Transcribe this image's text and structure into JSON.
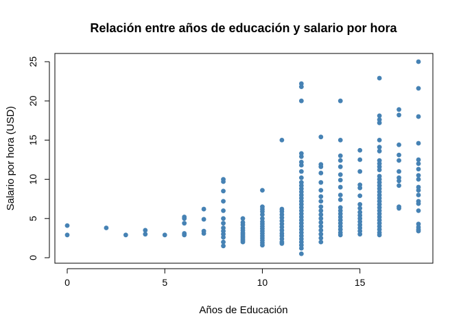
{
  "chart_data": {
    "type": "scatter",
    "title": "Relación entre años de educación y salario por hora",
    "xlabel": "Años de Educación",
    "ylabel": "Salario por hora (USD)",
    "xlim": [
      0,
      18
    ],
    "ylim": [
      0,
      25
    ],
    "xticks": [
      0,
      5,
      10,
      15
    ],
    "yticks": [
      0,
      5,
      10,
      15,
      20,
      25
    ],
    "xtick_labels": [
      "0",
      "5",
      "10",
      "15"
    ],
    "ytick_labels": [
      "0",
      "5",
      "10",
      "15",
      "20",
      "25"
    ],
    "grid": false,
    "legend": "none",
    "point_color": "#4682B4",
    "series": [
      {
        "points": [
          [
            0,
            4.1
          ],
          [
            0,
            2.9
          ],
          [
            2,
            3.8
          ],
          [
            3,
            2.9
          ],
          [
            4,
            3.5
          ],
          [
            4,
            3.0
          ],
          [
            5,
            2.9
          ],
          [
            6,
            5.2
          ],
          [
            6,
            5.0
          ],
          [
            6,
            4.4
          ],
          [
            6,
            3.1
          ],
          [
            6,
            2.9
          ],
          [
            7,
            6.2
          ],
          [
            7,
            4.9
          ],
          [
            7,
            3.4
          ],
          [
            7,
            3.1
          ],
          [
            8,
            10.0
          ],
          [
            8,
            9.7
          ],
          [
            8,
            8.5
          ],
          [
            8,
            7.2
          ],
          [
            8,
            6.0
          ],
          [
            8,
            5.0
          ],
          [
            8,
            4.4
          ],
          [
            8,
            3.8
          ],
          [
            8,
            3.4
          ],
          [
            8,
            3.0
          ],
          [
            8,
            2.6
          ],
          [
            8,
            2.0
          ],
          [
            8,
            1.5
          ],
          [
            9,
            5.0
          ],
          [
            9,
            4.5
          ],
          [
            9,
            4.2
          ],
          [
            9,
            3.8
          ],
          [
            9,
            3.5
          ],
          [
            9,
            3.2
          ],
          [
            9,
            3.0
          ],
          [
            9,
            2.8
          ],
          [
            9,
            2.6
          ],
          [
            9,
            2.4
          ],
          [
            9,
            2.2
          ],
          [
            9,
            2.0
          ],
          [
            10,
            8.6
          ],
          [
            10,
            6.5
          ],
          [
            10,
            6.2
          ],
          [
            10,
            5.9
          ],
          [
            10,
            5.5
          ],
          [
            10,
            5.0
          ],
          [
            10,
            4.6
          ],
          [
            10,
            4.3
          ],
          [
            10,
            4.0
          ],
          [
            10,
            3.7
          ],
          [
            10,
            3.4
          ],
          [
            10,
            3.1
          ],
          [
            10,
            2.8
          ],
          [
            10,
            2.5
          ],
          [
            10,
            2.2
          ],
          [
            10,
            1.9
          ],
          [
            10,
            1.6
          ],
          [
            11,
            15.0
          ],
          [
            11,
            6.2
          ],
          [
            11,
            5.9
          ],
          [
            11,
            5.5
          ],
          [
            11,
            5.1
          ],
          [
            11,
            4.7
          ],
          [
            11,
            4.3
          ],
          [
            11,
            3.9
          ],
          [
            11,
            3.5
          ],
          [
            11,
            3.1
          ],
          [
            11,
            2.8
          ],
          [
            11,
            2.4
          ],
          [
            11,
            2.0
          ],
          [
            11,
            1.8
          ],
          [
            12,
            22.2
          ],
          [
            12,
            21.8
          ],
          [
            12,
            20.0
          ],
          [
            12,
            13.3
          ],
          [
            12,
            12.9
          ],
          [
            12,
            12.2
          ],
          [
            12,
            11.8
          ],
          [
            12,
            11.0
          ],
          [
            12,
            10.2
          ],
          [
            12,
            9.6
          ],
          [
            12,
            9.2
          ],
          [
            12,
            8.8
          ],
          [
            12,
            8.4
          ],
          [
            12,
            8.0
          ],
          [
            12,
            7.6
          ],
          [
            12,
            7.2
          ],
          [
            12,
            6.8
          ],
          [
            12,
            6.4
          ],
          [
            12,
            6.0
          ],
          [
            12,
            5.6
          ],
          [
            12,
            5.2
          ],
          [
            12,
            4.8
          ],
          [
            12,
            4.4
          ],
          [
            12,
            4.0
          ],
          [
            12,
            3.6
          ],
          [
            12,
            3.2
          ],
          [
            12,
            2.8
          ],
          [
            12,
            2.4
          ],
          [
            12,
            2.0
          ],
          [
            12,
            1.6
          ],
          [
            12,
            1.2
          ],
          [
            12,
            0.5
          ],
          [
            13,
            15.4
          ],
          [
            13,
            11.9
          ],
          [
            13,
            11.6
          ],
          [
            13,
            10.8
          ],
          [
            13,
            9.6
          ],
          [
            13,
            8.6
          ],
          [
            13,
            7.8
          ],
          [
            13,
            7.2
          ],
          [
            13,
            6.5
          ],
          [
            13,
            6.0
          ],
          [
            13,
            5.5
          ],
          [
            13,
            5.0
          ],
          [
            13,
            4.5
          ],
          [
            13,
            4.0
          ],
          [
            13,
            3.5
          ],
          [
            13,
            3.0
          ],
          [
            13,
            2.5
          ],
          [
            13,
            2.0
          ],
          [
            14,
            20.0
          ],
          [
            14,
            15.0
          ],
          [
            14,
            13.0
          ],
          [
            14,
            12.4
          ],
          [
            14,
            11.6
          ],
          [
            14,
            10.6
          ],
          [
            14,
            9.9
          ],
          [
            14,
            9.0
          ],
          [
            14,
            8.0
          ],
          [
            14,
            7.4
          ],
          [
            14,
            6.4
          ],
          [
            14,
            6.0
          ],
          [
            14,
            5.6
          ],
          [
            14,
            5.2
          ],
          [
            14,
            4.8
          ],
          [
            14,
            4.4
          ],
          [
            14,
            4.0
          ],
          [
            14,
            3.6
          ],
          [
            14,
            3.2
          ],
          [
            14,
            2.9
          ],
          [
            15,
            13.7
          ],
          [
            15,
            12.5
          ],
          [
            15,
            11.0
          ],
          [
            15,
            9.3
          ],
          [
            15,
            8.9
          ],
          [
            15,
            7.9
          ],
          [
            15,
            6.8
          ],
          [
            15,
            6.3
          ],
          [
            15,
            5.8
          ],
          [
            15,
            5.4
          ],
          [
            15,
            5.0
          ],
          [
            15,
            4.6
          ],
          [
            15,
            4.2
          ],
          [
            15,
            3.8
          ],
          [
            15,
            3.4
          ],
          [
            15,
            3.0
          ],
          [
            16,
            22.9
          ],
          [
            16,
            18.1
          ],
          [
            16,
            17.6
          ],
          [
            16,
            17.2
          ],
          [
            16,
            15.0
          ],
          [
            16,
            14.1
          ],
          [
            16,
            13.6
          ],
          [
            16,
            12.4
          ],
          [
            16,
            12.0
          ],
          [
            16,
            11.6
          ],
          [
            16,
            11.2
          ],
          [
            16,
            10.4
          ],
          [
            16,
            10.0
          ],
          [
            16,
            9.6
          ],
          [
            16,
            9.2
          ],
          [
            16,
            8.8
          ],
          [
            16,
            8.4
          ],
          [
            16,
            8.0
          ],
          [
            16,
            7.6
          ],
          [
            16,
            7.2
          ],
          [
            16,
            6.8
          ],
          [
            16,
            6.4
          ],
          [
            16,
            6.0
          ],
          [
            16,
            5.6
          ],
          [
            16,
            5.2
          ],
          [
            16,
            4.8
          ],
          [
            16,
            4.4
          ],
          [
            16,
            4.0
          ],
          [
            16,
            3.6
          ],
          [
            16,
            3.2
          ],
          [
            16,
            2.9
          ],
          [
            17,
            18.9
          ],
          [
            17,
            18.2
          ],
          [
            17,
            14.4
          ],
          [
            17,
            13.1
          ],
          [
            17,
            12.4
          ],
          [
            17,
            11.0
          ],
          [
            17,
            10.2
          ],
          [
            17,
            9.8
          ],
          [
            17,
            9.2
          ],
          [
            17,
            6.5
          ],
          [
            17,
            6.3
          ],
          [
            18,
            25.0
          ],
          [
            18,
            21.6
          ],
          [
            18,
            18.0
          ],
          [
            18,
            14.6
          ],
          [
            18,
            12.5
          ],
          [
            18,
            12.0
          ],
          [
            18,
            11.3
          ],
          [
            18,
            10.5
          ],
          [
            18,
            10.0
          ],
          [
            18,
            9.0
          ],
          [
            18,
            8.6
          ],
          [
            18,
            8.0
          ],
          [
            18,
            7.2
          ],
          [
            18,
            6.9
          ],
          [
            18,
            6.0
          ],
          [
            18,
            4.3
          ],
          [
            18,
            3.9
          ],
          [
            18,
            3.6
          ],
          [
            18,
            3.4
          ]
        ]
      }
    ]
  }
}
